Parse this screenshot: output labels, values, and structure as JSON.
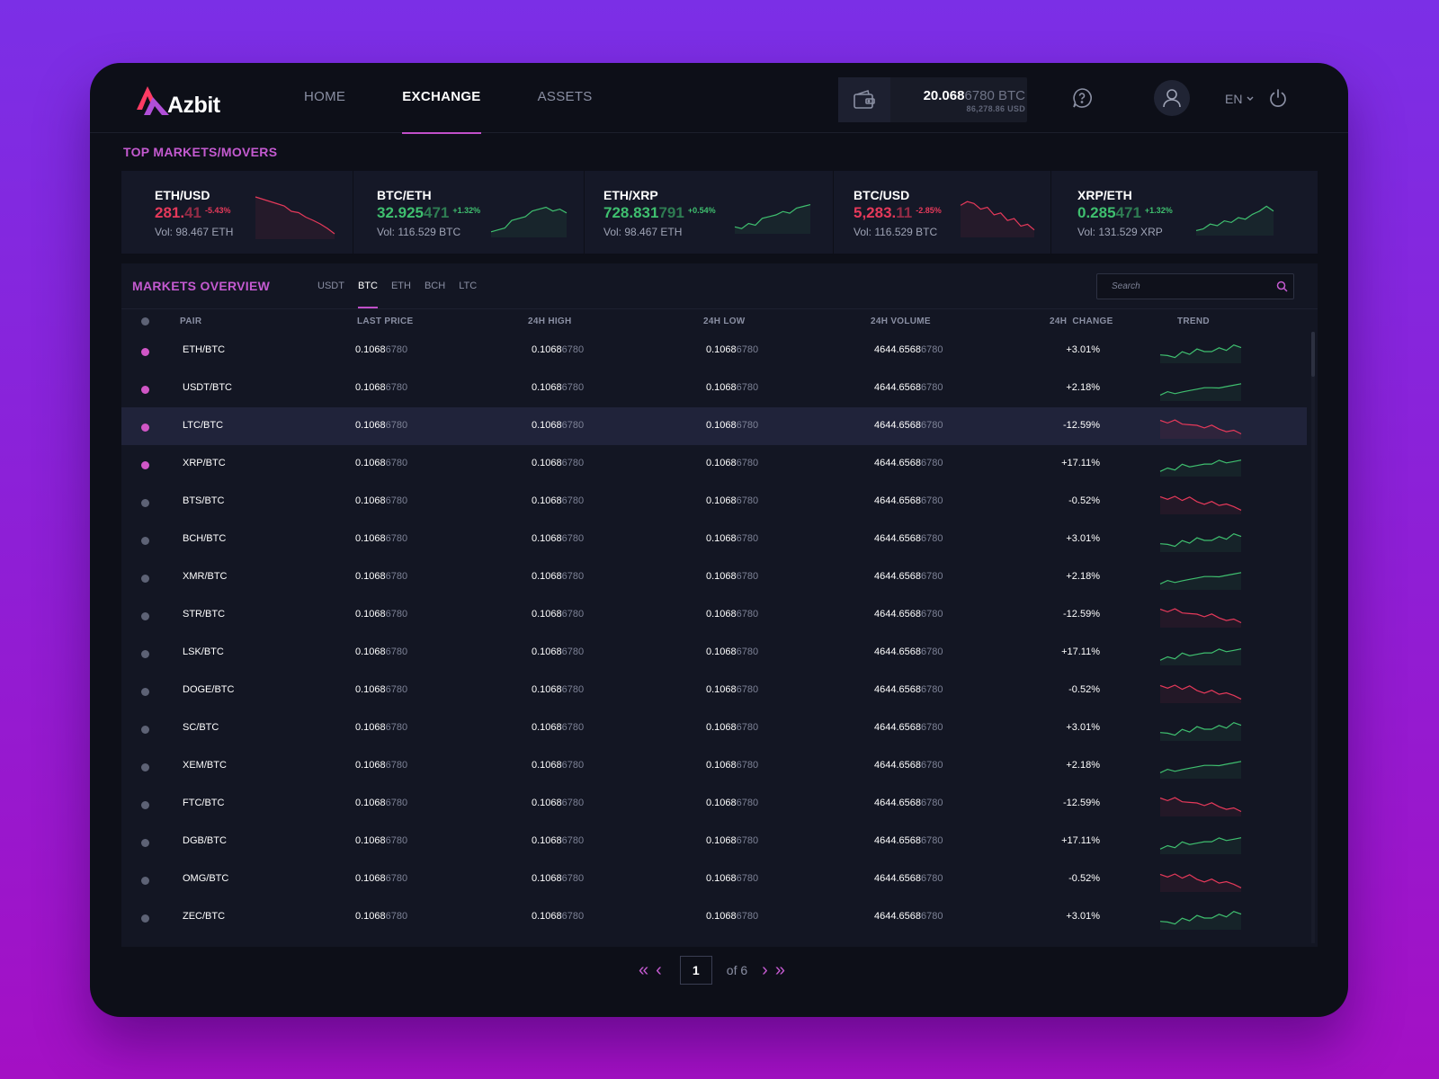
{
  "brand": {
    "name": "Azbit"
  },
  "nav": {
    "items": [
      {
        "label": "HOME"
      },
      {
        "label": "EXCHANGE"
      },
      {
        "label": "ASSETS"
      }
    ],
    "active": "EXCHANGE"
  },
  "wallet": {
    "btc_main": "20.068",
    "btc_rest": "6780 BTC",
    "usd": "86,278.86 USD"
  },
  "header": {
    "language": "EN"
  },
  "movers": {
    "title": "TOP MARKETS/MOVERS",
    "items": [
      {
        "pair": "ETH/USD",
        "price_main": "281.",
        "price_rest": "41",
        "change": "-5.43%",
        "volume": "Vol: 98.467 ETH",
        "direction": "down",
        "trend": [
          0.1,
          0.15,
          0.2,
          0.25,
          0.3,
          0.42,
          0.45,
          0.55,
          0.62,
          0.7,
          0.8,
          0.92
        ]
      },
      {
        "pair": "BTC/ETH",
        "price_main": "32.925",
        "price_rest": "471",
        "change": "+1.32%",
        "volume": "Vol: 116.529 BTC",
        "direction": "up",
        "trend": [
          0.9,
          0.85,
          0.8,
          0.6,
          0.55,
          0.5,
          0.35,
          0.3,
          0.25,
          0.35,
          0.3,
          0.4
        ]
      },
      {
        "pair": "ETH/XRP",
        "price_main": "728.831",
        "price_rest": "791",
        "change": "+0.54%",
        "volume": "Vol: 98.467 ETH",
        "direction": "up",
        "trend": [
          0.85,
          0.9,
          0.75,
          0.8,
          0.6,
          0.55,
          0.5,
          0.4,
          0.45,
          0.3,
          0.25,
          0.2
        ]
      },
      {
        "pair": "BTC/USD",
        "price_main": "5,283.",
        "price_rest": "11",
        "change": "-2.85%",
        "volume": "Vol: 116.529 BTC",
        "direction": "down",
        "trend": [
          0.2,
          0.1,
          0.15,
          0.3,
          0.25,
          0.45,
          0.4,
          0.6,
          0.55,
          0.75,
          0.7,
          0.85
        ]
      },
      {
        "pair": "XRP/ETH",
        "price_main": "0.285",
        "price_rest": "471",
        "change": "+1.32%",
        "volume": "Vol: 131.529 XRP",
        "direction": "up",
        "trend": [
          0.9,
          0.85,
          0.7,
          0.75,
          0.6,
          0.65,
          0.5,
          0.55,
          0.4,
          0.3,
          0.15,
          0.3
        ]
      }
    ]
  },
  "overview": {
    "title": "MARKETS OVERVIEW",
    "tabs": [
      "USDT",
      "BTC",
      "ETH",
      "BCH",
      "LTC"
    ],
    "active_tab": "BTC",
    "search_placeholder": "Search",
    "columns": {
      "pair": "PAIR",
      "last_price": "LAST PRICE",
      "high": "24H HIGH",
      "low": "24H LOW",
      "volume": "24H VOLUME",
      "change": "24H  CHANGE",
      "trend": "TREND"
    },
    "rows": [
      {
        "pair": "ETH/BTC",
        "fav": true,
        "change": "+3.01%",
        "dir": "up"
      },
      {
        "pair": "USDT/BTC",
        "fav": true,
        "change": "+2.18%",
        "dir": "up"
      },
      {
        "pair": "LTC/BTC",
        "fav": true,
        "change": "-12.59%",
        "dir": "down",
        "highlighted": true
      },
      {
        "pair": "XRP/BTC",
        "fav": true,
        "change": "+17.11%",
        "dir": "up"
      },
      {
        "pair": "BTS/BTC",
        "fav": false,
        "change": "-0.52%",
        "dir": "down"
      },
      {
        "pair": "BCH/BTC",
        "fav": false,
        "change": "+3.01%",
        "dir": "up"
      },
      {
        "pair": "XMR/BTC",
        "fav": false,
        "change": "+2.18%",
        "dir": "up"
      },
      {
        "pair": "STR/BTC",
        "fav": false,
        "change": "-12.59%",
        "dir": "down"
      },
      {
        "pair": "LSK/BTC",
        "fav": false,
        "change": "+17.11%",
        "dir": "up"
      },
      {
        "pair": "DOGE/BTC",
        "fav": false,
        "change": "-0.52%",
        "dir": "down"
      },
      {
        "pair": "SC/BTC",
        "fav": false,
        "change": "+3.01%",
        "dir": "up"
      },
      {
        "pair": "XEM/BTC",
        "fav": false,
        "change": "+2.18%",
        "dir": "up"
      },
      {
        "pair": "FTC/BTC",
        "fav": false,
        "change": "-12.59%",
        "dir": "down"
      },
      {
        "pair": "DGB/BTC",
        "fav": false,
        "change": "+17.11%",
        "dir": "up"
      },
      {
        "pair": "OMG/BTC",
        "fav": false,
        "change": "-0.52%",
        "dir": "down"
      },
      {
        "pair": "ZEC/BTC",
        "fav": false,
        "change": "+3.01%",
        "dir": "up"
      }
    ],
    "value_main": "0.1068",
    "value_rest": "6780",
    "volume_main": "4644.6568",
    "volume_rest": "6780"
  },
  "pagination": {
    "current": "1",
    "of_label": "of",
    "total": "6"
  },
  "colors": {
    "accent": "#c14fc9",
    "up": "#3fbf6f",
    "down": "#e5395a",
    "bg": "#0d0f18"
  },
  "icons": [
    "wallet-icon",
    "help-icon",
    "user-icon",
    "chevron-down-icon",
    "power-icon",
    "search-icon",
    "first-page-icon",
    "prev-page-icon",
    "next-page-icon",
    "last-page-icon"
  ]
}
